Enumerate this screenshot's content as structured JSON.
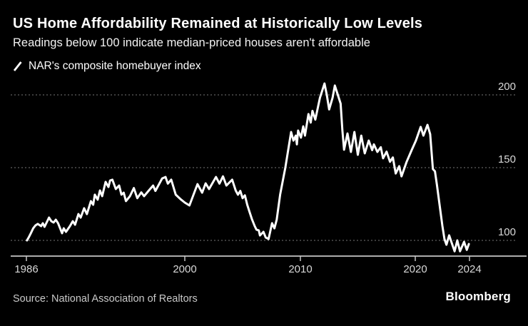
{
  "header": {
    "title": "US Home Affordability Remained at Historically Low Levels",
    "subtitle": "Readings below 100 indicate median-priced houses aren't affordable"
  },
  "legend": {
    "marker": "slash-icon",
    "label": "NAR's composite homebuyer index"
  },
  "footer": {
    "source": "Source: National Association of Realtors",
    "brand": "Bloomberg"
  },
  "colors": {
    "background": "#000000",
    "line": "#ffffff",
    "grid": "#787878",
    "axis": "#c4c4c4",
    "tick_label": "#d9d9d9",
    "source_text": "#c9c9c9"
  },
  "chart_data": {
    "type": "line",
    "title": "US Home Affordability Remained at Historically Low Levels",
    "xlabel": "",
    "ylabel": "",
    "x_ticks": [
      1986,
      2000,
      2010,
      2020,
      2024
    ],
    "y_ticks": [
      100,
      150,
      200
    ],
    "xlim": [
      1986,
      2024.3
    ],
    "ylim": [
      89,
      212
    ],
    "grid": "dashed-horizontal",
    "legend_position": "top-left",
    "series": [
      {
        "name": "NAR's composite homebuyer index",
        "color": "#ffffff",
        "points": [
          [
            1986.05,
            100
          ],
          [
            1986.2,
            102
          ],
          [
            1986.4,
            105
          ],
          [
            1986.6,
            108.3
          ],
          [
            1986.8,
            110.3
          ],
          [
            1987,
            111.3
          ],
          [
            1987.3,
            109.8
          ],
          [
            1987.45,
            111.8
          ],
          [
            1987.6,
            109.3
          ],
          [
            1988,
            115.7
          ],
          [
            1988.2,
            113.2
          ],
          [
            1988.4,
            112.3
          ],
          [
            1988.6,
            114.2
          ],
          [
            1988.8,
            111.8
          ],
          [
            1989.15,
            104.9
          ],
          [
            1989.3,
            108.3
          ],
          [
            1989.5,
            105.9
          ],
          [
            1989.85,
            109.8
          ],
          [
            1990.1,
            113.2
          ],
          [
            1990.3,
            110.8
          ],
          [
            1990.6,
            118.1
          ],
          [
            1990.8,
            115.7
          ],
          [
            1991.1,
            122.1
          ],
          [
            1991.35,
            118.1
          ],
          [
            1991.7,
            127
          ],
          [
            1991.9,
            124.5
          ],
          [
            1992.05,
            131.4
          ],
          [
            1992.3,
            128
          ],
          [
            1992.5,
            134.3
          ],
          [
            1992.7,
            130.4
          ],
          [
            1993,
            140.2
          ],
          [
            1993.25,
            136.7
          ],
          [
            1993.4,
            141.2
          ],
          [
            1993.6,
            141.7
          ],
          [
            1993.9,
            135.3
          ],
          [
            1994.2,
            137.7
          ],
          [
            1994.4,
            131.4
          ],
          [
            1994.6,
            132.8
          ],
          [
            1994.8,
            127
          ],
          [
            1995.15,
            130.4
          ],
          [
            1995.5,
            136
          ],
          [
            1995.8,
            129
          ],
          [
            1996.15,
            133
          ],
          [
            1996.4,
            130.4
          ],
          [
            1996.9,
            135
          ],
          [
            1997.2,
            137.7
          ],
          [
            1997.4,
            134
          ],
          [
            1998,
            142.6
          ],
          [
            1998.3,
            143.6
          ],
          [
            1998.5,
            139
          ],
          [
            1998.8,
            141.7
          ],
          [
            1999.2,
            131.4
          ],
          [
            1999.6,
            128.5
          ],
          [
            2000,
            126
          ],
          [
            2000.4,
            124
          ],
          [
            2001.1,
            138.7
          ],
          [
            2001.5,
            132.8
          ],
          [
            2001.8,
            139.2
          ],
          [
            2002.1,
            135.3
          ],
          [
            2002.7,
            143.6
          ],
          [
            2003,
            139
          ],
          [
            2003.3,
            144
          ],
          [
            2003.6,
            137.7
          ],
          [
            2004.1,
            141.7
          ],
          [
            2004.4,
            134.3
          ],
          [
            2004.6,
            131.4
          ],
          [
            2004.8,
            134
          ],
          [
            2005,
            129
          ],
          [
            2005.2,
            131
          ],
          [
            2005.4,
            124.5
          ],
          [
            2005.6,
            119.6
          ],
          [
            2005.8,
            114.7
          ],
          [
            2006.05,
            109.8
          ],
          [
            2006.2,
            107.4
          ],
          [
            2006.4,
            106.9
          ],
          [
            2006.5,
            103.4
          ],
          [
            2006.8,
            105.9
          ],
          [
            2007,
            102
          ],
          [
            2007.25,
            101
          ],
          [
            2007.55,
            111.8
          ],
          [
            2007.75,
            108.3
          ],
          [
            2007.95,
            114.2
          ],
          [
            2008.25,
            131.4
          ],
          [
            2008.7,
            150
          ],
          [
            2008.9,
            160
          ],
          [
            2009.2,
            174.5
          ],
          [
            2009.4,
            168.6
          ],
          [
            2009.6,
            172
          ],
          [
            2009.7,
            166
          ],
          [
            2009.8,
            175.5
          ],
          [
            2010.05,
            170.6
          ],
          [
            2010.25,
            178.4
          ],
          [
            2010.4,
            172
          ],
          [
            2010.7,
            186.8
          ],
          [
            2010.9,
            181
          ],
          [
            2011.05,
            189
          ],
          [
            2011.3,
            183
          ],
          [
            2011.7,
            198
          ],
          [
            2012.1,
            207.8
          ],
          [
            2012.3,
            200
          ],
          [
            2012.5,
            190
          ],
          [
            2012.8,
            198
          ],
          [
            2013,
            206.4
          ],
          [
            2013.3,
            199
          ],
          [
            2013.5,
            194
          ],
          [
            2013.65,
            176
          ],
          [
            2013.8,
            162.3
          ],
          [
            2014.1,
            173.5
          ],
          [
            2014.4,
            160.8
          ],
          [
            2014.7,
            174.5
          ],
          [
            2015,
            158.8
          ],
          [
            2015.3,
            172
          ],
          [
            2015.6,
            159.8
          ],
          [
            2015.95,
            168.6
          ],
          [
            2016.25,
            162
          ],
          [
            2016.4,
            166
          ],
          [
            2016.7,
            160.8
          ],
          [
            2017,
            164
          ],
          [
            2017.2,
            156.4
          ],
          [
            2017.5,
            161
          ],
          [
            2017.8,
            154
          ],
          [
            2018.05,
            157
          ],
          [
            2018.3,
            146
          ],
          [
            2018.6,
            151
          ],
          [
            2018.8,
            144
          ],
          [
            2019.25,
            154
          ],
          [
            2019.7,
            162.3
          ],
          [
            2020.05,
            168.6
          ],
          [
            2020.4,
            178
          ],
          [
            2020.6,
            172
          ],
          [
            2020.9,
            179.4
          ],
          [
            2021.1,
            173
          ],
          [
            2021.3,
            149
          ],
          [
            2021.45,
            147.5
          ],
          [
            2021.6,
            138
          ],
          [
            2021.8,
            124
          ],
          [
            2022,
            110
          ],
          [
            2022.15,
            101
          ],
          [
            2022.3,
            97
          ],
          [
            2022.5,
            103.5
          ],
          [
            2022.7,
            98
          ],
          [
            2022.9,
            92.5
          ],
          [
            2023.1,
            100
          ],
          [
            2023.3,
            92.5
          ],
          [
            2023.6,
            99
          ],
          [
            2023.8,
            93.5
          ],
          [
            2023.95,
            97.5
          ]
        ]
      }
    ]
  }
}
